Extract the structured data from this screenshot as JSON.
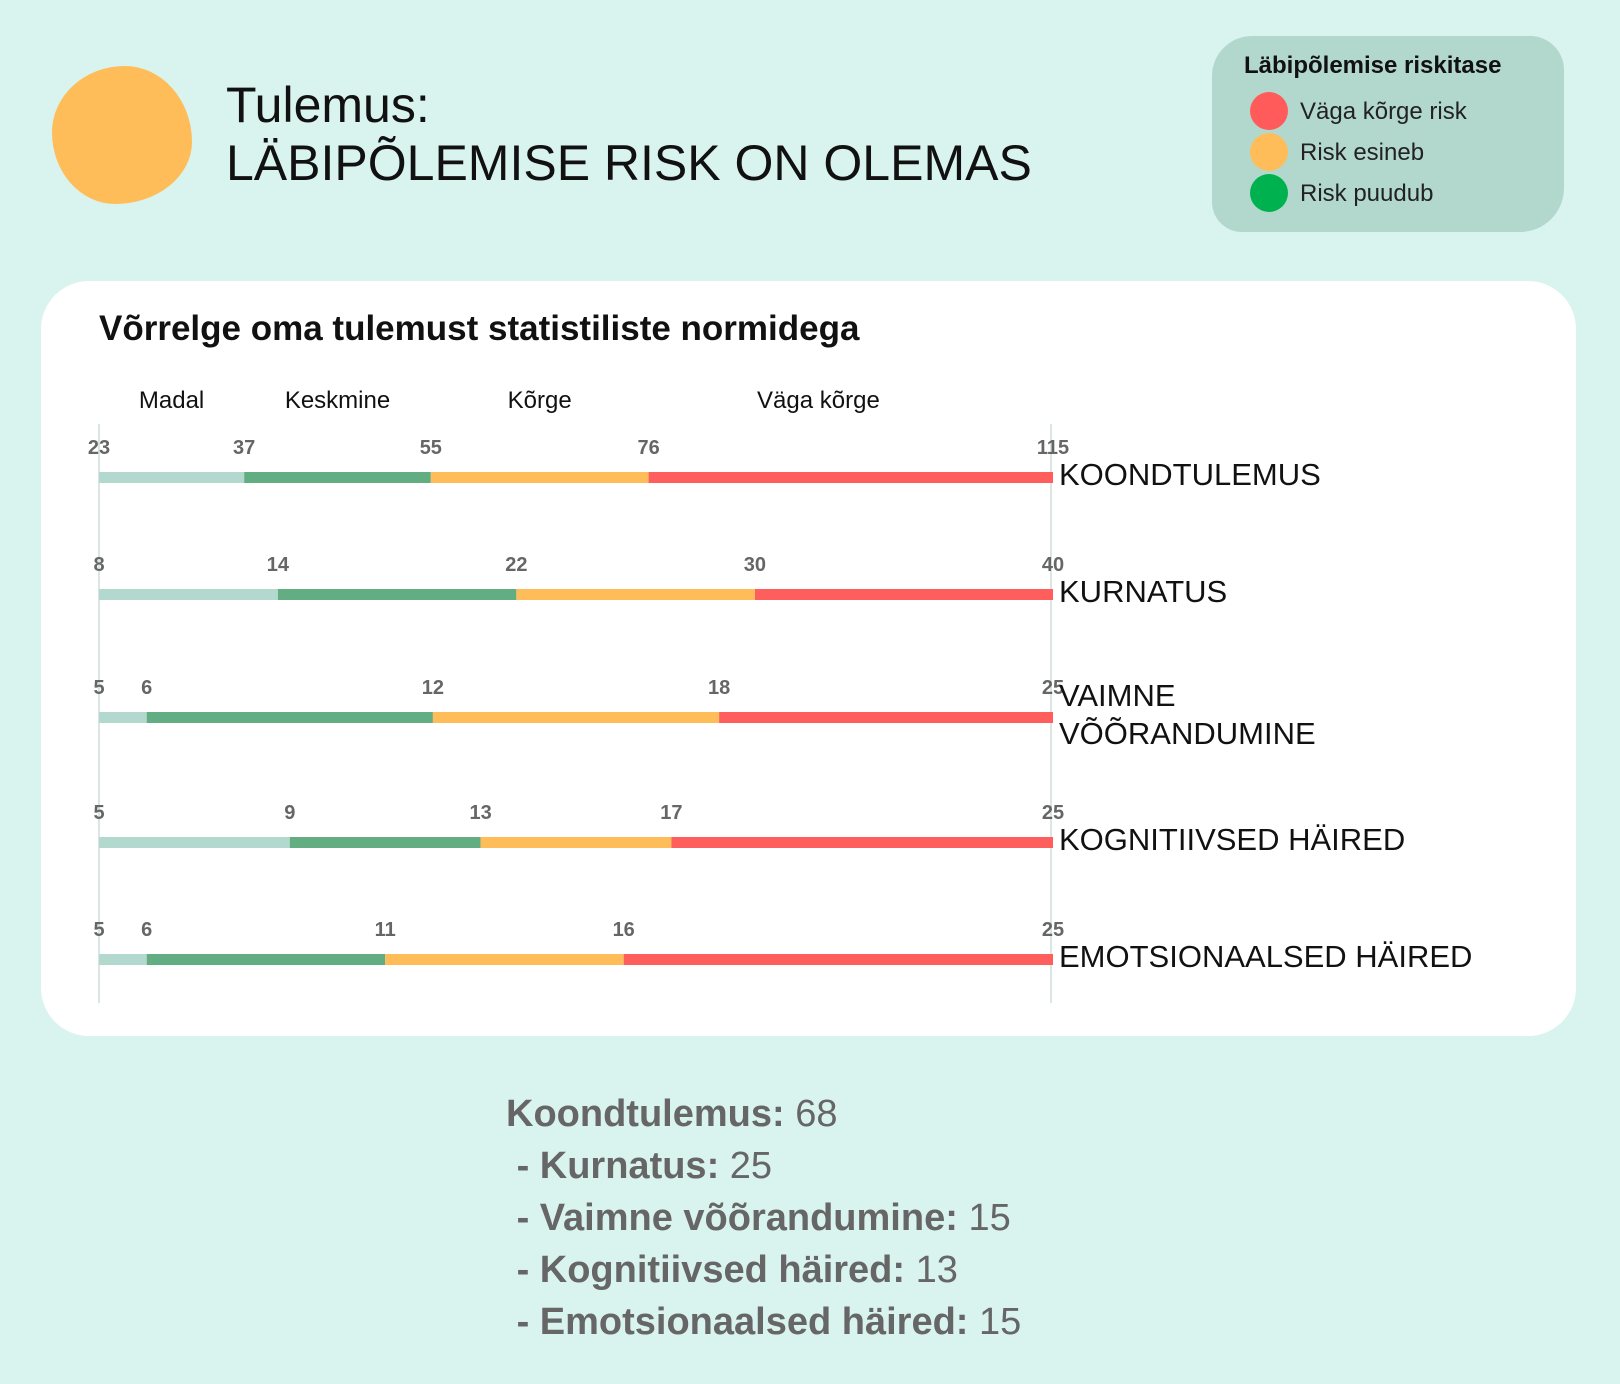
{
  "header": {
    "line1": "Tulemus:",
    "line2": "LÄBIPÕLEMISE RISK ON OLEMAS",
    "result_color": "#ffbd59"
  },
  "legend": {
    "title": "Läbipõlemise riskitase",
    "items": [
      {
        "label": "Väga kõrge risk",
        "color": "#ff5b5b"
      },
      {
        "label": "Risk esineb",
        "color": "#ffbd59"
      },
      {
        "label": "Risk puudub",
        "color": "#00b14f"
      }
    ]
  },
  "card": {
    "title": "Võrrelge oma tulemust statistiliste normidega"
  },
  "chart_data": {
    "type": "bar",
    "orientation": "horizontal-segmented",
    "level_labels": [
      "Madal",
      "Keskmine",
      "Kõrge",
      "Väga kõrge"
    ],
    "segment_colors": [
      "#b3d9ce",
      "#62ad81",
      "#ffbd59",
      "#ff5f5c"
    ],
    "rows": [
      {
        "name": "KOONDTULEMUS",
        "thresholds": [
          23,
          37,
          55,
          76,
          115
        ]
      },
      {
        "name": "KURNATUS",
        "thresholds": [
          8,
          14,
          22,
          30,
          40
        ]
      },
      {
        "name": "VAIMNE VÕÕRANDUMINE",
        "name_lines": [
          "VAIMNE",
          "VÕÕRANDUMINE"
        ],
        "thresholds": [
          5,
          6,
          12,
          18,
          25
        ]
      },
      {
        "name": "KOGNITIIVSED HÄIRED",
        "thresholds": [
          5,
          9,
          13,
          17,
          25
        ]
      },
      {
        "name": "EMOTSIONAALSED HÄIRED",
        "thresholds": [
          5,
          6,
          11,
          16,
          25
        ]
      }
    ]
  },
  "summary": {
    "rows": [
      {
        "label": "Koondtulemus:",
        "value": "68"
      },
      {
        "label": "- Kurnatus:",
        "value": "25"
      },
      {
        "label": "- Vaimne võõrandumine:",
        "value": "15"
      },
      {
        "label": "- Kognitiivsed häired:",
        "value": "13"
      },
      {
        "label": "- Emotsionaalsed häired:",
        "value": "15"
      }
    ]
  }
}
